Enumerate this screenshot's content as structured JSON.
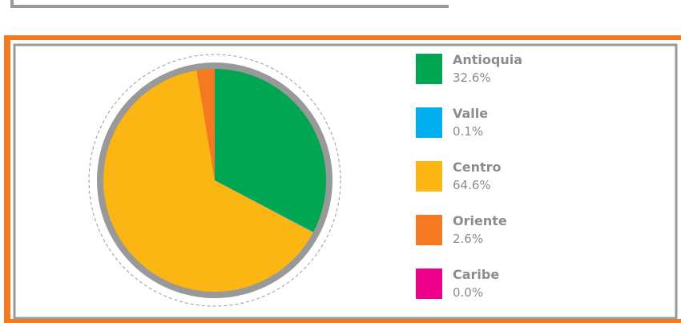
{
  "chart_data": {
    "type": "pie",
    "categories": [
      "Antioquia",
      "Valle",
      "Centro",
      "Oriente",
      "Caribe"
    ],
    "values": [
      32.6,
      0.1,
      64.6,
      2.6,
      0.0
    ],
    "value_labels": [
      "32.6%",
      "0.1%",
      "64.6%",
      "2.6%",
      "0.0%"
    ],
    "colors": [
      "#00a651",
      "#00aeef",
      "#fbb614",
      "#f47920",
      "#ec008c"
    ]
  }
}
